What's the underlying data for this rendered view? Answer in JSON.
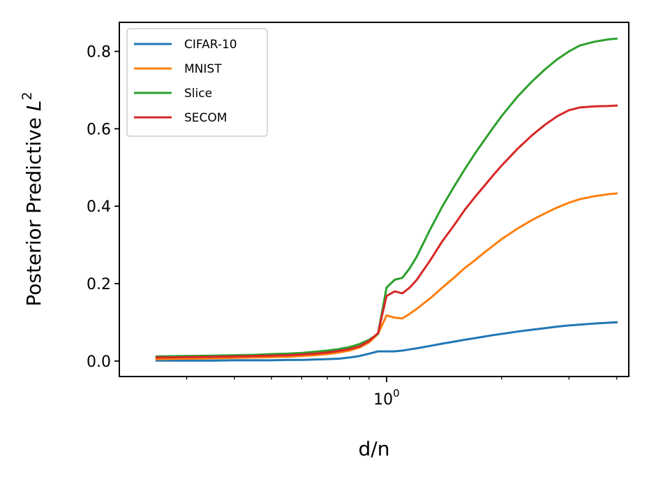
{
  "chart_data": {
    "type": "line",
    "title": "",
    "xlabel": "d/n",
    "ylabel": {
      "main": "Posterior Predictive ",
      "sym": "L",
      "sup": "2"
    },
    "xscale": "log",
    "xlim": [
      0.2,
      4.3
    ],
    "ylim": [
      -0.04,
      0.875
    ],
    "x_major_ticks": [
      {
        "value": 1,
        "base": "10",
        "exp": "0"
      }
    ],
    "x_minor_ticks": [
      0.3,
      0.4,
      0.5,
      0.6,
      0.7,
      0.8,
      0.9,
      2,
      3,
      4
    ],
    "y_ticks": [
      0.0,
      0.2,
      0.4,
      0.6,
      0.8
    ],
    "y_tick_labels": [
      "0.0",
      "0.2",
      "0.4",
      "0.6",
      "0.8"
    ],
    "legend_position": "top-left",
    "x": [
      0.25,
      0.3,
      0.35,
      0.4,
      0.45,
      0.5,
      0.55,
      0.6,
      0.65,
      0.7,
      0.75,
      0.8,
      0.85,
      0.9,
      0.95,
      1.0,
      1.05,
      1.1,
      1.15,
      1.2,
      1.3,
      1.4,
      1.5,
      1.6,
      1.7,
      1.8,
      1.9,
      2.0,
      2.2,
      2.4,
      2.6,
      2.8,
      3.0,
      3.2,
      3.5,
      3.8,
      4.0
    ],
    "series": [
      {
        "name": "CIFAR-10",
        "color": "#1f77b4",
        "values": [
          0.001,
          0.001,
          0.001,
          0.002,
          0.002,
          0.002,
          0.003,
          0.003,
          0.004,
          0.005,
          0.006,
          0.009,
          0.013,
          0.019,
          0.025,
          0.025,
          0.025,
          0.027,
          0.03,
          0.033,
          0.039,
          0.045,
          0.05,
          0.055,
          0.059,
          0.063,
          0.067,
          0.07,
          0.076,
          0.081,
          0.085,
          0.089,
          0.092,
          0.094,
          0.097,
          0.099,
          0.1
        ]
      },
      {
        "name": "MNIST",
        "color": "#ff7f0e",
        "values": [
          0.005,
          0.006,
          0.007,
          0.008,
          0.009,
          0.01,
          0.011,
          0.013,
          0.015,
          0.018,
          0.022,
          0.027,
          0.035,
          0.048,
          0.07,
          0.118,
          0.112,
          0.11,
          0.122,
          0.135,
          0.162,
          0.19,
          0.215,
          0.24,
          0.26,
          0.28,
          0.298,
          0.315,
          0.342,
          0.364,
          0.382,
          0.397,
          0.409,
          0.418,
          0.426,
          0.431,
          0.433
        ]
      },
      {
        "name": "Slice",
        "color": "#2ca02c",
        "values": [
          0.012,
          0.013,
          0.014,
          0.015,
          0.016,
          0.018,
          0.019,
          0.021,
          0.024,
          0.027,
          0.031,
          0.036,
          0.044,
          0.055,
          0.07,
          0.19,
          0.21,
          0.215,
          0.24,
          0.27,
          0.34,
          0.4,
          0.45,
          0.495,
          0.535,
          0.57,
          0.603,
          0.633,
          0.683,
          0.722,
          0.754,
          0.78,
          0.8,
          0.815,
          0.825,
          0.831,
          0.833
        ]
      },
      {
        "name": "SECOM",
        "color": "#d62728",
        "values": [
          0.009,
          0.01,
          0.011,
          0.012,
          0.013,
          0.014,
          0.015,
          0.017,
          0.019,
          0.022,
          0.026,
          0.031,
          0.038,
          0.052,
          0.072,
          0.168,
          0.18,
          0.175,
          0.19,
          0.21,
          0.26,
          0.31,
          0.35,
          0.39,
          0.423,
          0.452,
          0.48,
          0.505,
          0.548,
          0.583,
          0.611,
          0.633,
          0.648,
          0.655,
          0.658,
          0.659,
          0.66
        ]
      }
    ]
  }
}
